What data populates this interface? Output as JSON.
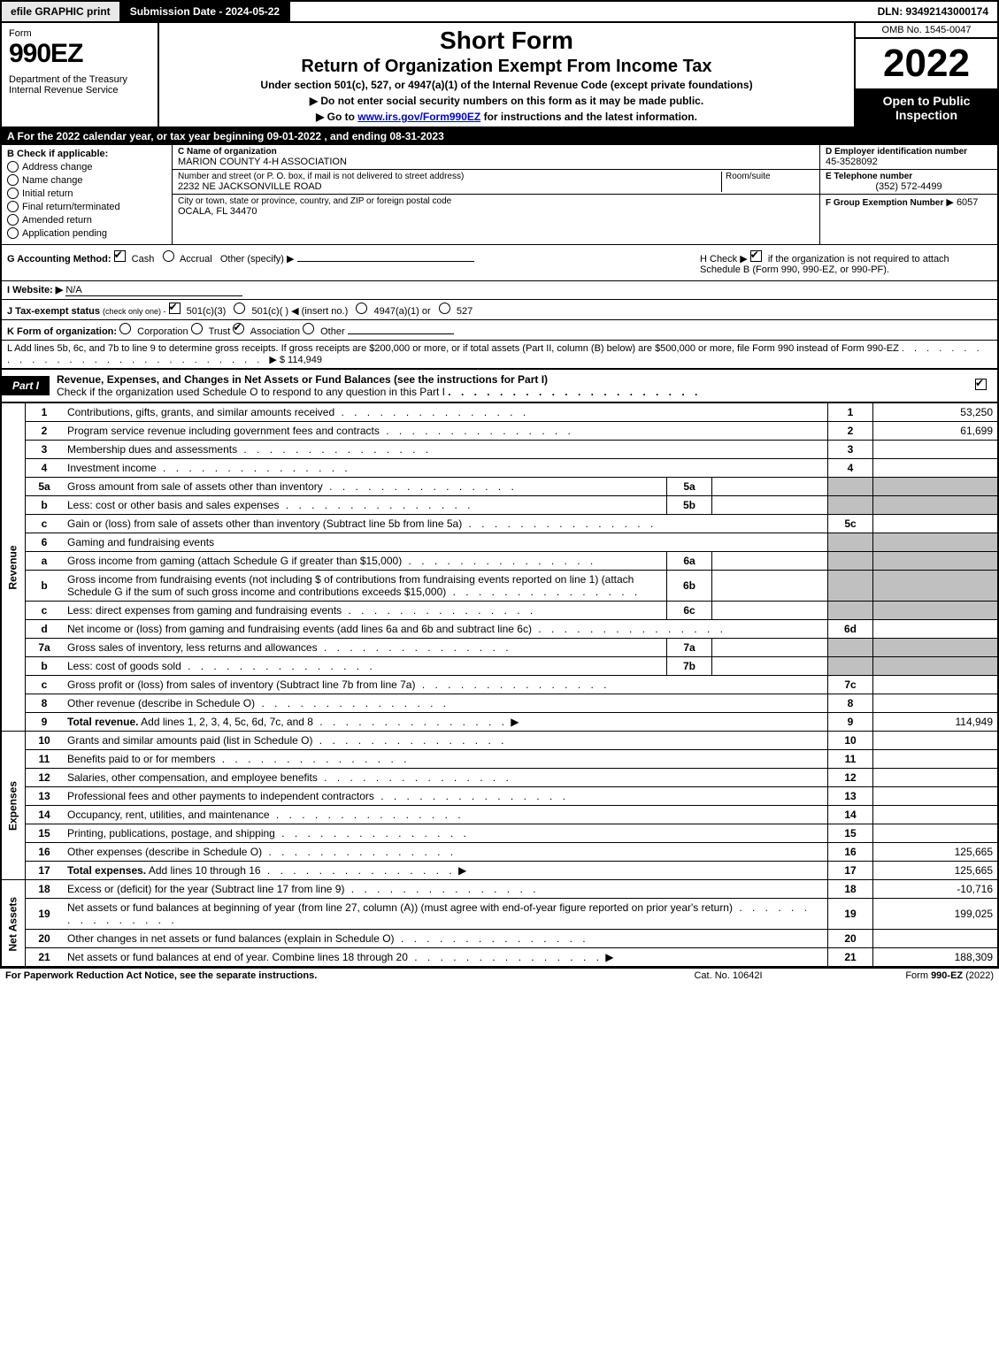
{
  "top": {
    "efile": "efile GRAPHIC print",
    "submission_label": "Submission Date - 2024-05-22",
    "dln_label": "DLN: 93492143000174"
  },
  "header": {
    "form_label": "Form",
    "form_number": "990EZ",
    "dept": "Department of the Treasury",
    "irs": "Internal Revenue Service",
    "title": "Short Form",
    "subtitle": "Return of Organization Exempt From Income Tax",
    "section": "Under section 501(c), 527, or 4947(a)(1) of the Internal Revenue Code (except private foundations)",
    "warn": "▶ Do not enter social security numbers on this form as it may be made public.",
    "goto_pre": "▶ Go to ",
    "goto_link": "www.irs.gov/Form990EZ",
    "goto_post": " for instructions and the latest information.",
    "omb": "OMB No. 1545-0047",
    "year": "2022",
    "inspection": "Open to Public Inspection"
  },
  "lineA": "A  For the 2022 calendar year, or tax year beginning 09-01-2022  , and ending 08-31-2023",
  "colB": {
    "label": "Check if applicable:",
    "items": [
      "Address change",
      "Name change",
      "Initial return",
      "Final return/terminated",
      "Amended return",
      "Application pending"
    ]
  },
  "colC": {
    "name_label": "C Name of organization",
    "name": "MARION COUNTY 4-H ASSOCIATION",
    "street_label": "Number and street (or P. O. box, if mail is not delivered to street address)",
    "room_label": "Room/suite",
    "street": "2232 NE JACKSONVILLE ROAD",
    "city_label": "City or town, state or province, country, and ZIP or foreign postal code",
    "city": "OCALA, FL  34470"
  },
  "colD": {
    "ein_label": "D Employer identification number",
    "ein": "45-3528092",
    "phone_label": "E Telephone number",
    "phone": "(352) 572-4499",
    "ge_label": "F Group Exemption Number",
    "ge_arrow": "▶",
    "ge": "6057"
  },
  "lineG": {
    "label": "G Accounting Method:",
    "cash": "Cash",
    "accrual": "Accrual",
    "other": "Other (specify) ▶"
  },
  "lineH": {
    "label_pre": "H  Check ▶",
    "label_post": "if the organization is not required to attach Schedule B (Form 990, 990-EZ, or 990-PF)."
  },
  "lineI": {
    "label": "I Website: ▶",
    "value": "N/A"
  },
  "lineJ": {
    "label": "J Tax-exempt status",
    "sub": "(check only one) -",
    "opt1": "501(c)(3)",
    "opt2": "501(c)(  ) ◀ (insert no.)",
    "opt3": "4947(a)(1) or",
    "opt4": "527"
  },
  "lineK": {
    "label": "K Form of organization:",
    "opts": [
      "Corporation",
      "Trust",
      "Association",
      "Other"
    ]
  },
  "lineL": {
    "text": "L Add lines 5b, 6c, and 7b to line 9 to determine gross receipts. If gross receipts are $200,000 or more, or if total assets (Part II, column (B) below) are $500,000 or more, file Form 990 instead of Form 990-EZ",
    "value": "$ 114,949"
  },
  "part1": {
    "badge": "Part I",
    "title": "Revenue, Expenses, and Changes in Net Assets or Fund Balances (see the instructions for Part I)",
    "check_label": "Check if the organization used Schedule O to respond to any question in this Part I"
  },
  "side_labels": {
    "revenue": "Revenue",
    "expenses": "Expenses",
    "netassets": "Net Assets"
  },
  "lines": [
    {
      "no": "1",
      "desc": "Contributions, gifts, grants, and similar amounts received",
      "num": "1",
      "val": "53,250"
    },
    {
      "no": "2",
      "desc": "Program service revenue including government fees and contracts",
      "num": "2",
      "val": "61,699"
    },
    {
      "no": "3",
      "desc": "Membership dues and assessments",
      "num": "3",
      "val": ""
    },
    {
      "no": "4",
      "desc": "Investment income",
      "num": "4",
      "val": ""
    },
    {
      "no": "5a",
      "desc": "Gross amount from sale of assets other than inventory",
      "subno": "5a",
      "subval": "",
      "num": "",
      "val": "",
      "shaded": true
    },
    {
      "no": "b",
      "desc": "Less: cost or other basis and sales expenses",
      "subno": "5b",
      "subval": "",
      "num": "",
      "val": "",
      "shaded": true
    },
    {
      "no": "c",
      "desc": "Gain or (loss) from sale of assets other than inventory (Subtract line 5b from line 5a)",
      "num": "5c",
      "val": ""
    },
    {
      "no": "6",
      "desc": "Gaming and fundraising events",
      "num": "",
      "val": "",
      "shaded": true,
      "noline": true
    },
    {
      "no": "a",
      "desc": "Gross income from gaming (attach Schedule G if greater than $15,000)",
      "subno": "6a",
      "subval": "",
      "num": "",
      "val": "",
      "shaded": true
    },
    {
      "no": "b",
      "desc": "Gross income from fundraising events (not including $                    of contributions from fundraising events reported on line 1) (attach Schedule G if the sum of such gross income and contributions exceeds $15,000)",
      "subno": "6b",
      "subval": "",
      "num": "",
      "val": "",
      "shaded": true
    },
    {
      "no": "c",
      "desc": "Less: direct expenses from gaming and fundraising events",
      "subno": "6c",
      "subval": "",
      "num": "",
      "val": "",
      "shaded": true
    },
    {
      "no": "d",
      "desc": "Net income or (loss) from gaming and fundraising events (add lines 6a and 6b and subtract line 6c)",
      "num": "6d",
      "val": ""
    },
    {
      "no": "7a",
      "desc": "Gross sales of inventory, less returns and allowances",
      "subno": "7a",
      "subval": "",
      "num": "",
      "val": "",
      "shaded": true
    },
    {
      "no": "b",
      "desc": "Less: cost of goods sold",
      "subno": "7b",
      "subval": "",
      "num": "",
      "val": "",
      "shaded": true
    },
    {
      "no": "c",
      "desc": "Gross profit or (loss) from sales of inventory (Subtract line 7b from line 7a)",
      "num": "7c",
      "val": ""
    },
    {
      "no": "8",
      "desc": "Other revenue (describe in Schedule O)",
      "num": "8",
      "val": ""
    },
    {
      "no": "9",
      "desc": "Total revenue. Add lines 1, 2, 3, 4, 5c, 6d, 7c, and 8",
      "num": "9",
      "val": "114,949",
      "bold": true,
      "arrow": true
    }
  ],
  "expense_lines": [
    {
      "no": "10",
      "desc": "Grants and similar amounts paid (list in Schedule O)",
      "num": "10",
      "val": ""
    },
    {
      "no": "11",
      "desc": "Benefits paid to or for members",
      "num": "11",
      "val": ""
    },
    {
      "no": "12",
      "desc": "Salaries, other compensation, and employee benefits",
      "num": "12",
      "val": ""
    },
    {
      "no": "13",
      "desc": "Professional fees and other payments to independent contractors",
      "num": "13",
      "val": ""
    },
    {
      "no": "14",
      "desc": "Occupancy, rent, utilities, and maintenance",
      "num": "14",
      "val": ""
    },
    {
      "no": "15",
      "desc": "Printing, publications, postage, and shipping",
      "num": "15",
      "val": ""
    },
    {
      "no": "16",
      "desc": "Other expenses (describe in Schedule O)",
      "num": "16",
      "val": "125,665"
    },
    {
      "no": "17",
      "desc": "Total expenses. Add lines 10 through 16",
      "num": "17",
      "val": "125,665",
      "bold": true,
      "arrow": true
    }
  ],
  "net_lines": [
    {
      "no": "18",
      "desc": "Excess or (deficit) for the year (Subtract line 17 from line 9)",
      "num": "18",
      "val": "-10,716"
    },
    {
      "no": "19",
      "desc": "Net assets or fund balances at beginning of year (from line 27, column (A)) (must agree with end-of-year figure reported on prior year's return)",
      "num": "19",
      "val": "199,025"
    },
    {
      "no": "20",
      "desc": "Other changes in net assets or fund balances (explain in Schedule O)",
      "num": "20",
      "val": ""
    },
    {
      "no": "21",
      "desc": "Net assets or fund balances at end of year. Combine lines 18 through 20",
      "num": "21",
      "val": "188,309",
      "arrow": true
    }
  ],
  "footer": {
    "left": "For Paperwork Reduction Act Notice, see the separate instructions.",
    "mid": "Cat. No. 10642I",
    "right_pre": "Form ",
    "right_bold": "990-EZ",
    "right_post": " (2022)"
  }
}
